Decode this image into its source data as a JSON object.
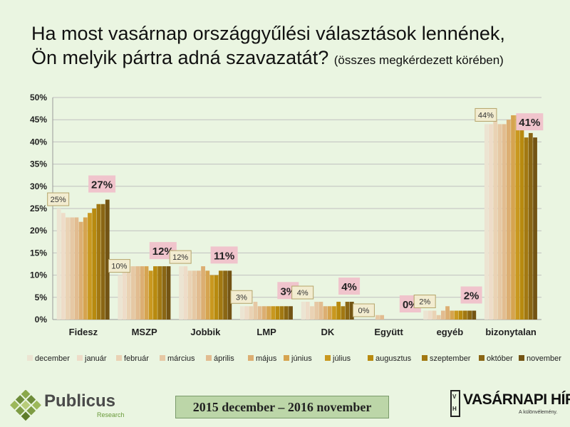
{
  "title_line1": "Ha most vasárnap országgyűlési választások lennének,",
  "title_line2": "Ön melyik pártra adná szavazatát?",
  "subtitle": "(összes megkérdezett körében)",
  "period": "2015 december – 2016 november",
  "logo_left": {
    "name": "Publicus",
    "tag": "Research"
  },
  "logo_right": {
    "name": "VASÁRNAPI HÍREK",
    "tag": "A különvélemény.",
    "mark_top": "V",
    "mark_bottom": "H"
  },
  "colors": {
    "background": "#eaf5e1",
    "callout_first_fill": "#f2ecd0",
    "callout_first_border": "#b5a46a",
    "callout_last_fill": "#f0c4cc",
    "axis": "#999999",
    "gridline": "#c0c0c0"
  },
  "chart_data": {
    "type": "bar",
    "categories": [
      "Fidesz",
      "MSZP",
      "Jobbik",
      "LMP",
      "DK",
      "Együtt",
      "egyéb",
      "bizonytalan"
    ],
    "yticks": [
      "0%",
      "5%",
      "10%",
      "15%",
      "20%",
      "25%",
      "30%",
      "35%",
      "40%",
      "45%",
      "50%"
    ],
    "ylim": [
      0,
      50
    ],
    "grid": true,
    "legend_position": "bottom",
    "series": [
      {
        "name": "december",
        "color": "#ece4d2",
        "values": [
          25,
          10,
          12,
          3,
          4,
          0,
          2,
          44
        ]
      },
      {
        "name": "január",
        "color": "#eedcc8",
        "values": [
          24,
          11,
          12,
          3,
          4,
          0,
          2,
          44
        ]
      },
      {
        "name": "február",
        "color": "#ead2b4",
        "values": [
          23,
          12,
          11,
          3,
          3,
          0,
          2,
          45
        ]
      },
      {
        "name": "március",
        "color": "#e6c8a4",
        "values": [
          23,
          12,
          11,
          4,
          4,
          1,
          1,
          44
        ]
      },
      {
        "name": "április",
        "color": "#e2bc90",
        "values": [
          23,
          12,
          11,
          3,
          4,
          1,
          2,
          44
        ]
      },
      {
        "name": "május",
        "color": "#dcae72",
        "values": [
          22,
          12,
          12,
          3,
          3,
          0,
          3,
          45
        ]
      },
      {
        "name": "június",
        "color": "#d6a450",
        "values": [
          23,
          12,
          11,
          3,
          3,
          0,
          2,
          46
        ]
      },
      {
        "name": "július",
        "color": "#c9981f",
        "values": [
          24,
          11,
          10,
          3,
          3,
          0,
          2,
          46
        ]
      },
      {
        "name": "augusztus",
        "color": "#b88a0f",
        "values": [
          25,
          12,
          10,
          3,
          4,
          0,
          2,
          46
        ]
      },
      {
        "name": "szeptember",
        "color": "#a27812",
        "values": [
          26,
          12,
          11,
          3,
          3,
          0,
          2,
          41
        ]
      },
      {
        "name": "október",
        "color": "#8a6614",
        "values": [
          26,
          12,
          11,
          3,
          4,
          0,
          2,
          42
        ]
      },
      {
        "name": "november",
        "color": "#735414",
        "values": [
          27,
          12,
          11,
          3,
          4,
          0,
          2,
          41
        ]
      }
    ],
    "callouts_first": [
      "25%",
      "10%",
      "12%",
      "3%",
      "4%",
      "0%",
      "2%",
      "44%"
    ],
    "callouts_last": [
      "27%",
      "12%",
      "11%",
      "3%",
      "4%",
      "0%",
      "2%",
      "41%"
    ]
  }
}
